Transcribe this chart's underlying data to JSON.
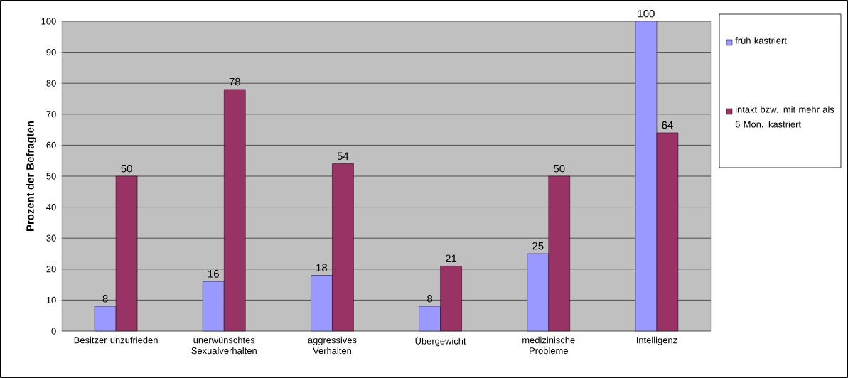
{
  "chart_data": {
    "type": "bar",
    "ylabel": "Prozent der Befragten",
    "categories": [
      "Besitzer unzufrieden",
      "unerwünschtes Sexualverhalten",
      "aggressives Verhalten",
      "Übergewicht",
      "medizinische Probleme",
      "Intelligenz"
    ],
    "series": [
      {
        "name": "früh kastriert",
        "color": "#9999ff",
        "values": [
          8,
          16,
          18,
          8,
          25,
          100
        ]
      },
      {
        "name": "intakt bzw. mit mehr als 6 Mon. kastriert",
        "color": "#993366",
        "values": [
          50,
          78,
          54,
          21,
          50,
          64
        ]
      }
    ],
    "ylim": [
      0,
      100
    ],
    "yticks": [
      0,
      10,
      20,
      30,
      40,
      50,
      60,
      70,
      80,
      90,
      100
    ],
    "grid": "y",
    "legend": "right",
    "data_labels": true
  }
}
